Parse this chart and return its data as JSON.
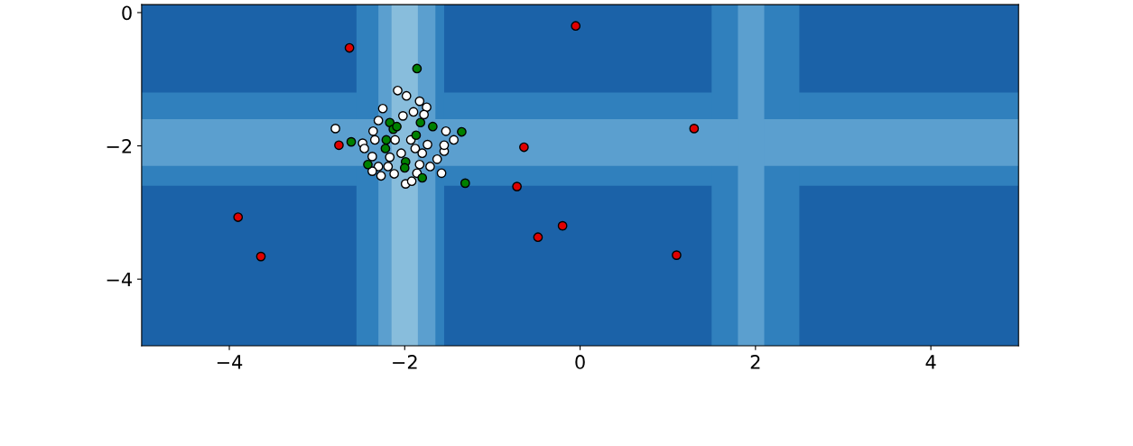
{
  "chart_data": {
    "type": "scatter",
    "marker": "circle",
    "grid": false,
    "xlim": [
      -5,
      5
    ],
    "ylim": [
      -5,
      0.12
    ],
    "xticks": [
      -4,
      -2,
      0,
      2,
      4
    ],
    "yticks": [
      -4,
      -2,
      0
    ],
    "bands": [
      {
        "axis": "x",
        "from": -5,
        "to": 5,
        "color": "#1b62a8"
      },
      {
        "axis": "y",
        "from": -2.6,
        "to": -1.2,
        "color": "#3080bd"
      },
      {
        "axis": "x",
        "from": -2.55,
        "to": -1.55,
        "color": "#3080bd"
      },
      {
        "axis": "x",
        "from": 1.5,
        "to": 2.5,
        "color": "#3080bd"
      },
      {
        "axis": "y",
        "from": -2.3,
        "to": -1.6,
        "color": "#5b9fcf"
      },
      {
        "axis": "x",
        "from": -2.3,
        "to": -1.65,
        "color": "#5b9fcf"
      },
      {
        "axis": "x",
        "from": 1.8,
        "to": 2.1,
        "color": "#5b9fcf"
      },
      {
        "axis": "x",
        "from": -2.15,
        "to": -1.85,
        "color": "#88bddc"
      }
    ],
    "series": [
      {
        "color": "#ffffff",
        "x": [
          -2.08,
          -1.98,
          -1.83,
          -1.75,
          -2.25,
          -2.02,
          -2.3,
          -2.79,
          -2.36,
          -2.48,
          -2.46,
          -2.37,
          -2.3,
          -2.37,
          -2.27,
          -2.12,
          -1.99,
          -1.92,
          -1.58,
          -1.63,
          -1.55,
          -1.55,
          -1.53,
          -1.44,
          -1.74,
          -1.88,
          -2.04,
          -2.17,
          -1.83,
          -1.78,
          -1.9,
          -1.93,
          -2.11,
          -1.8,
          -1.71,
          -2.19,
          -1.86,
          -2.34
        ],
        "values": [
          -1.17,
          -1.25,
          -1.33,
          -1.42,
          -1.44,
          -1.55,
          -1.62,
          -1.74,
          -1.78,
          -1.96,
          -2.04,
          -2.16,
          -2.31,
          -2.38,
          -2.45,
          -2.42,
          -2.57,
          -2.53,
          -2.41,
          -2.2,
          -2.08,
          -1.99,
          -1.78,
          -1.91,
          -1.98,
          -2.04,
          -2.11,
          -2.17,
          -2.28,
          -1.53,
          -1.49,
          -1.91,
          -1.91,
          -2.11,
          -2.31,
          -2.31,
          -2.41,
          -1.91
        ]
      },
      {
        "color": "#008000",
        "x": [
          -1.86,
          -1.31,
          -1.35,
          -2.61,
          -2.42,
          -1.8,
          -2.17,
          -2.13,
          -2.21,
          -2.22,
          -1.99,
          -2.0,
          -1.82,
          -1.68,
          -1.87,
          -2.09
        ],
        "values": [
          -0.84,
          -2.56,
          -1.79,
          -1.94,
          -2.28,
          -2.48,
          -1.65,
          -1.75,
          -1.91,
          -2.04,
          -2.24,
          -2.33,
          -1.65,
          -1.71,
          -1.84,
          -1.71
        ]
      },
      {
        "color": "#e00000",
        "x": [
          -2.63,
          -0.05,
          1.3,
          -0.64,
          -2.75,
          -0.72,
          -0.2,
          -0.48,
          -3.9,
          -3.64,
          1.1
        ],
        "values": [
          -0.53,
          -0.2,
          -1.74,
          -2.02,
          -1.99,
          -2.61,
          -3.2,
          -3.37,
          -3.07,
          -3.66,
          -3.64
        ]
      }
    ]
  }
}
